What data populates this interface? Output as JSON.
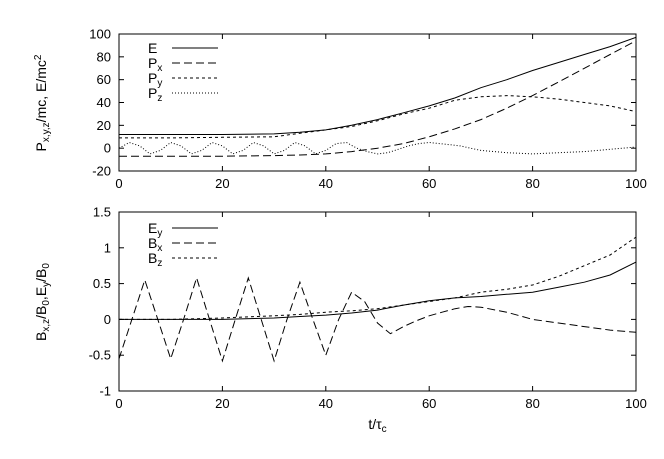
{
  "chart_data": [
    {
      "type": "line",
      "ylabel": "P_{x,y,z}/mc, E/mc^2",
      "ylabel_parts": [
        {
          "t": "P",
          "sub": false
        },
        {
          "t": "x,y,z",
          "sub": true
        },
        {
          "t": "/mc, E/mc",
          "sub": false
        },
        {
          "t": "2",
          "sup": true
        }
      ],
      "xlim": [
        0,
        100
      ],
      "ylim": [
        -20,
        100
      ],
      "xticks": [
        "0",
        "20",
        "40",
        "60",
        "80",
        "100"
      ],
      "yticks": [
        "-20",
        "0",
        "20",
        "40",
        "60",
        "80",
        "100"
      ],
      "legend_position": "top-left",
      "series": [
        {
          "name": "E",
          "sub": "",
          "dash": "solid",
          "x": [
            0,
            10,
            20,
            30,
            35,
            40,
            45,
            50,
            55,
            60,
            65,
            70,
            75,
            80,
            85,
            90,
            95,
            100
          ],
          "y": [
            12,
            12,
            12,
            12.5,
            14,
            16,
            20,
            25,
            31,
            37,
            44,
            53,
            60,
            68,
            75,
            82,
            89,
            97
          ]
        },
        {
          "name": "P",
          "sub": "x",
          "dash": "dashed",
          "x": [
            0,
            10,
            20,
            30,
            35,
            40,
            45,
            50,
            55,
            60,
            65,
            70,
            75,
            80,
            85,
            90,
            95,
            100
          ],
          "y": [
            -7,
            -7,
            -7,
            -6.5,
            -6,
            -5,
            -3,
            0,
            4,
            10,
            17,
            25,
            35,
            46,
            58,
            70,
            82,
            94
          ]
        },
        {
          "name": "P",
          "sub": "y",
          "dash": "short-dashed",
          "x": [
            0,
            10,
            20,
            30,
            35,
            40,
            45,
            50,
            55,
            60,
            65,
            70,
            75,
            80,
            85,
            90,
            95,
            100
          ],
          "y": [
            9,
            9,
            9.5,
            10,
            13,
            16,
            19,
            24,
            30,
            35,
            42,
            45,
            46,
            45,
            43,
            40,
            37,
            32
          ]
        },
        {
          "name": "P",
          "sub": "z",
          "dash": "dotted",
          "x": [
            0,
            2,
            4,
            6,
            8,
            10,
            12,
            14,
            16,
            18,
            20,
            22,
            24,
            26,
            28,
            30,
            32,
            34,
            36,
            38,
            40,
            42,
            44,
            46,
            48,
            50,
            52,
            54,
            56,
            58,
            60,
            62,
            64,
            66,
            68,
            70,
            75,
            80,
            85,
            90,
            95,
            100
          ],
          "y": [
            0,
            5,
            2,
            -5,
            -2,
            5,
            2,
            -5,
            -2,
            5,
            2,
            -5,
            -2,
            5,
            2,
            -5,
            -2,
            5,
            2,
            -5,
            -2,
            4,
            5,
            0,
            -3,
            -5,
            -4,
            -1,
            2,
            4,
            5,
            4,
            3,
            2,
            0,
            -2,
            -4,
            -5,
            -4,
            -3,
            -1,
            1
          ]
        }
      ]
    },
    {
      "type": "line",
      "ylabel": "B_{x,z}/B_0,E_y/B_0",
      "ylabel_parts": [
        {
          "t": "B",
          "sub": false
        },
        {
          "t": "x,z",
          "sub": true
        },
        {
          "t": "/B",
          "sub": false
        },
        {
          "t": "0",
          "sub": true
        },
        {
          "t": ",E",
          "sub": false
        },
        {
          "t": "y",
          "sub": true
        },
        {
          "t": "/B",
          "sub": false
        },
        {
          "t": "0",
          "sub": true
        }
      ],
      "xlabel": "t/τ_c",
      "xlabel_parts": [
        {
          "t": "t/τ",
          "sub": false
        },
        {
          "t": "c",
          "sub": true
        }
      ],
      "xlim": [
        0,
        100
      ],
      "ylim": [
        -1,
        1.5
      ],
      "xticks": [
        "0",
        "20",
        "40",
        "60",
        "80",
        "100"
      ],
      "yticks": [
        "-1",
        "-0.5",
        "0",
        "0.5",
        "1",
        "1.5"
      ],
      "legend_position": "top-left",
      "series": [
        {
          "name": "E",
          "sub": "y",
          "dash": "solid",
          "x": [
            0,
            10,
            20,
            30,
            35,
            40,
            45,
            50,
            55,
            60,
            65,
            70,
            75,
            80,
            85,
            90,
            95,
            100
          ],
          "y": [
            0,
            0,
            0,
            0.02,
            0.04,
            0.06,
            0.09,
            0.13,
            0.2,
            0.26,
            0.3,
            0.32,
            0.35,
            0.38,
            0.45,
            0.52,
            0.62,
            0.8
          ]
        },
        {
          "name": "B",
          "sub": "x",
          "dash": "dashed",
          "x": [
            0,
            2.5,
            5,
            7.5,
            10,
            12.5,
            15,
            17.5,
            20,
            22.5,
            25,
            27.5,
            30,
            32.5,
            35,
            37.5,
            40,
            42.5,
            45,
            47.5,
            50,
            52.5,
            55,
            57.5,
            60,
            62.5,
            65,
            67.5,
            70,
            75,
            80,
            85,
            90,
            95,
            100
          ],
          "y": [
            -0.55,
            0,
            0.55,
            0,
            -0.55,
            0,
            0.58,
            0,
            -0.58,
            0,
            0.58,
            0,
            -0.58,
            0,
            0.52,
            0,
            -0.5,
            0,
            0.38,
            0.25,
            -0.05,
            -0.2,
            -0.1,
            -0.02,
            0.05,
            0.1,
            0.15,
            0.18,
            0.17,
            0.1,
            0,
            -0.05,
            -0.1,
            -0.15,
            -0.18
          ]
        },
        {
          "name": "B",
          "sub": "z",
          "dash": "short-dashed",
          "x": [
            0,
            10,
            20,
            30,
            35,
            40,
            45,
            50,
            55,
            60,
            65,
            70,
            75,
            80,
            85,
            90,
            95,
            100
          ],
          "y": [
            0,
            0,
            0.02,
            0.05,
            0.07,
            0.1,
            0.12,
            0.15,
            0.2,
            0.25,
            0.3,
            0.38,
            0.42,
            0.48,
            0.6,
            0.75,
            0.9,
            1.15
          ]
        }
      ]
    }
  ]
}
